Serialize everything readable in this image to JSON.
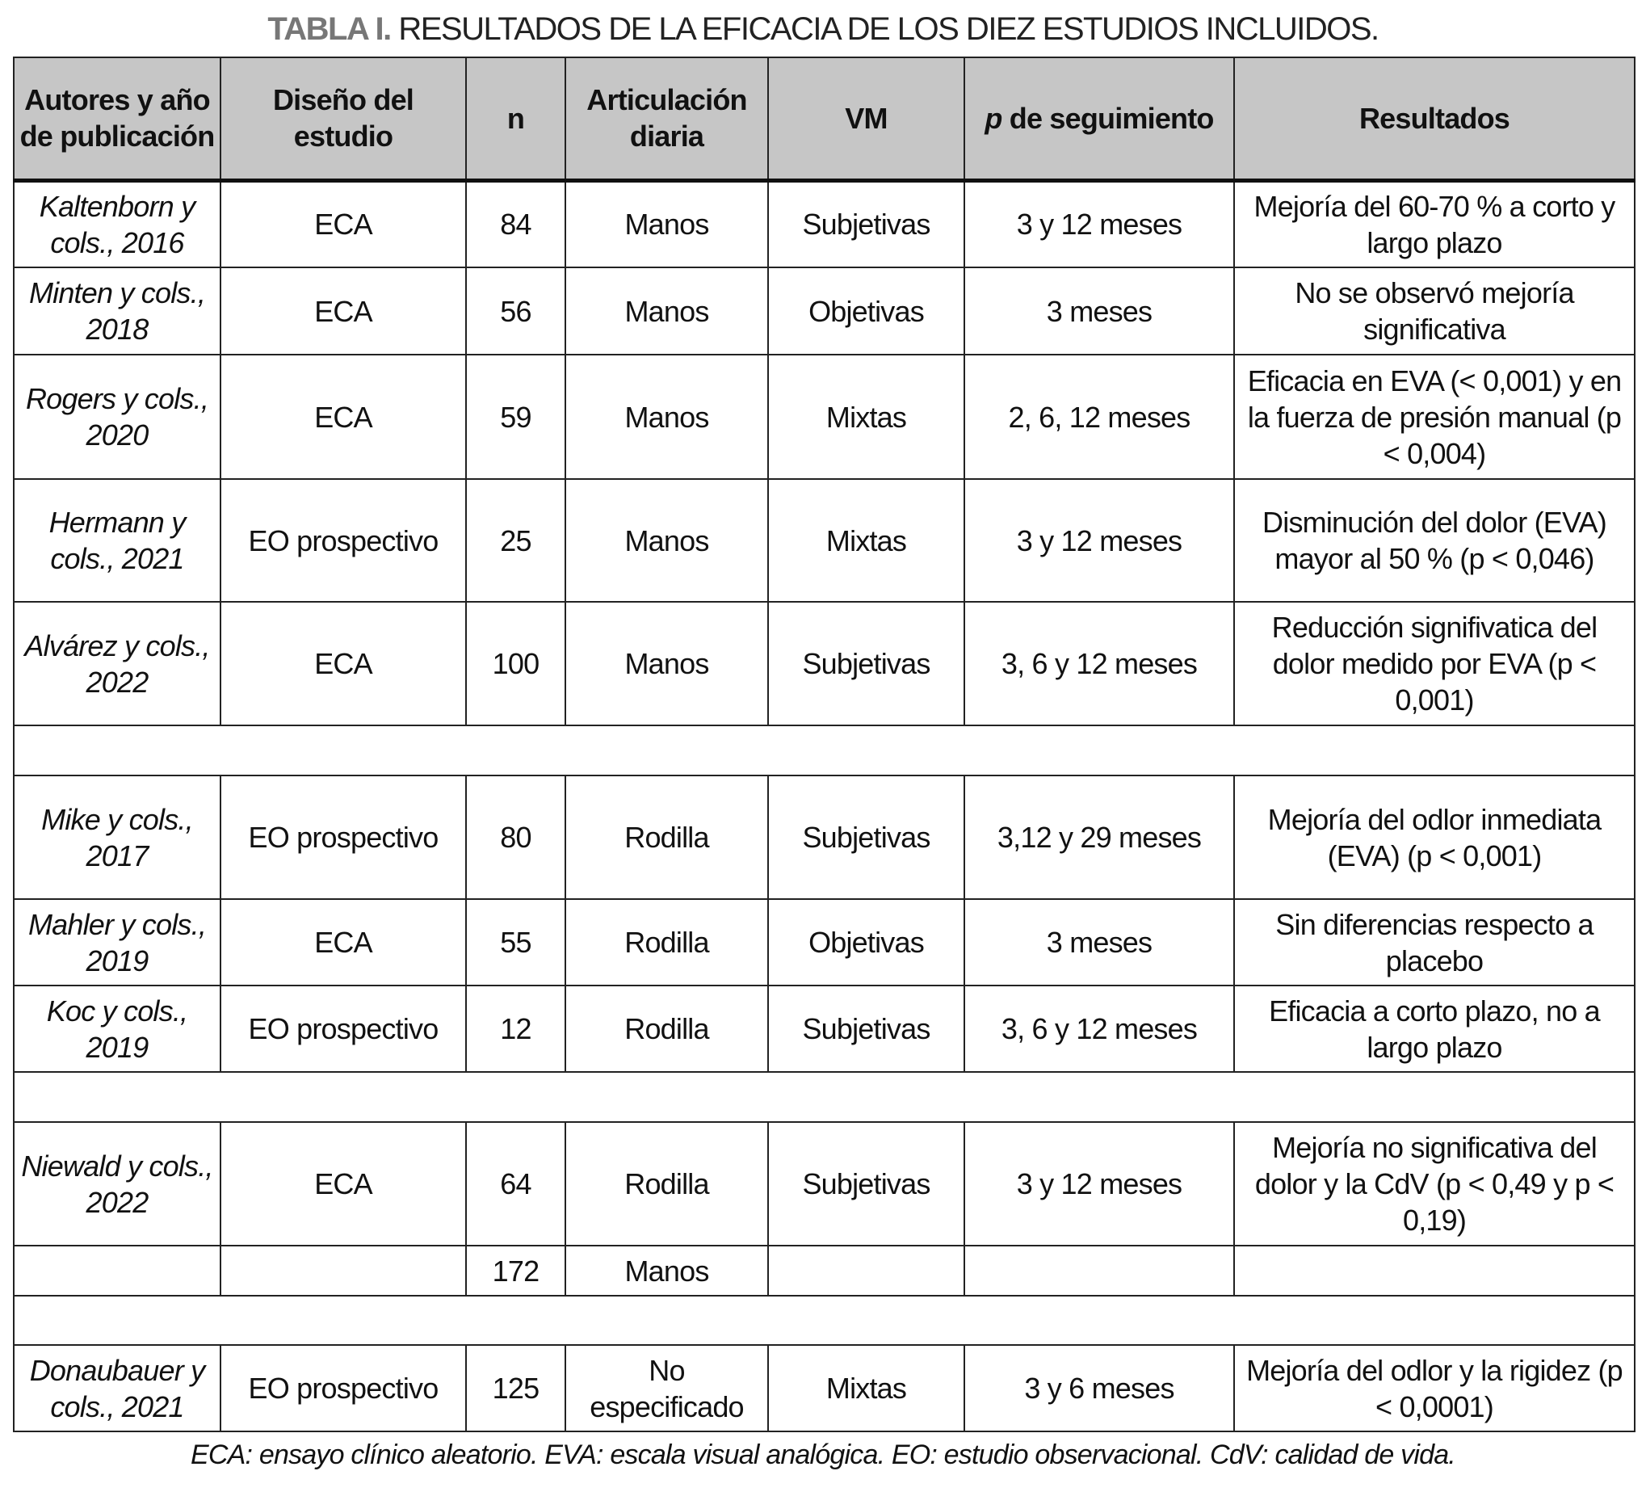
{
  "title": {
    "label": "TABLA I.",
    "text": "RESULTADOS DE LA EFICACIA DE LOS DIEZ ESTUDIOS INCLUIDOS."
  },
  "headers": {
    "authors": "Autores y año de publicación",
    "design": "Diseño del estudio",
    "n": "n",
    "joint": "Articulación diaria",
    "vm": "VM",
    "p_italic": "p",
    "followup": "de seguimiento",
    "results": "Resultados"
  },
  "rows": [
    {
      "authors": "Kaltenborn y cols., 2016",
      "design": "ECA",
      "n": "84",
      "joint": "Manos",
      "vm": "Subjetivas",
      "followup": "3 y 12 meses",
      "results": "Mejoría del 60-70 % a corto y largo plazo"
    },
    {
      "authors": "Minten y cols., 2018",
      "design": "ECA",
      "n": "56",
      "joint": "Manos",
      "vm": "Objetivas",
      "followup": "3 meses",
      "results": "No se observó mejoría significativa"
    },
    {
      "authors": "Rogers y cols., 2020",
      "design": "ECA",
      "n": "59",
      "joint": "Manos",
      "vm": "Mixtas",
      "followup": "2, 6, 12 meses",
      "results": "Eficacia en EVA (< 0,001) y en la fuerza de presión manual (p < 0,004)"
    },
    {
      "authors": "Hermann y cols., 2021",
      "design": "EO prospectivo",
      "n": "25",
      "joint": "Manos",
      "vm": "Mixtas",
      "followup": "3 y 12 meses",
      "results": "Disminución del dolor (EVA) mayor al 50 % (p < 0,046)"
    },
    {
      "authors": "Alvárez y cols., 2022",
      "design": "ECA",
      "n": "100",
      "joint": "Manos",
      "vm": "Subjetivas",
      "followup": "3, 6 y 12 meses",
      "results": "Reducción signifivatica del dolor medido por EVA (p < 0,001)"
    },
    {
      "spacer": true
    },
    {
      "authors": "Mike y cols., 2017",
      "design": "EO prospectivo",
      "n": "80",
      "joint": "Rodilla",
      "vm": "Subjetivas",
      "followup": "3,12 y 29 meses",
      "results": "Mejoría del odlor inmediata (EVA) (p < 0,001)"
    },
    {
      "authors": "Mahler y cols., 2019",
      "design": "ECA",
      "n": "55",
      "joint": "Rodilla",
      "vm": "Objetivas",
      "followup": "3 meses",
      "results": "Sin diferencias respecto a placebo"
    },
    {
      "authors": "Koc y cols., 2019",
      "design": "EO prospectivo",
      "n": "12",
      "joint": "Rodilla",
      "vm": "Subjetivas",
      "followup": "3, 6 y 12 meses",
      "results": "Eficacia a corto plazo, no a largo plazo"
    },
    {
      "spacer": true
    },
    {
      "authors": "Niewald y cols., 2022",
      "design": "ECA",
      "n": "64",
      "joint": "Rodilla",
      "vm": "Subjetivas",
      "followup": "3 y 12 meses",
      "results": "Mejoría no significativa del dolor y la CdV (p < 0,49 y p < 0,19)"
    },
    {
      "authors": "",
      "design": "",
      "n": "172",
      "joint": "Manos",
      "vm": "",
      "followup": "",
      "results": ""
    },
    {
      "spacer": true
    },
    {
      "authors": "Donaubauer y cols., 2021",
      "design": "EO prospectivo",
      "n": "125",
      "joint": "No especificado",
      "vm": "Mixtas",
      "followup": "3 y 6 meses",
      "results": "Mejoría del odlor y la rigidez (p < 0,0001)"
    }
  ],
  "footnote": "ECA: ensayo clínico aleatorio. EVA: escala visual analógica. EO: estudio observacional. CdV: calidad de vida."
}
